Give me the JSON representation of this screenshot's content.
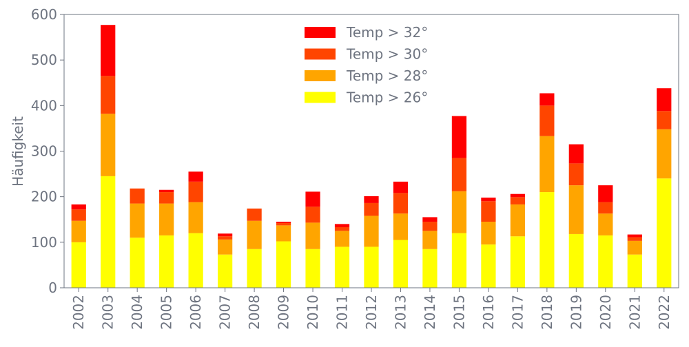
{
  "chart_data": {
    "type": "bar",
    "stacked": true,
    "title": "",
    "xlabel": "",
    "ylabel": "Häufigkeit",
    "ylim": [
      0,
      600
    ],
    "yticks": [
      0,
      100,
      200,
      300,
      400,
      500,
      600
    ],
    "grid": false,
    "legend_position": "top-center",
    "categories": [
      "2002",
      "2003",
      "2004",
      "2005",
      "2006",
      "2007",
      "2008",
      "2009",
      "2010",
      "2011",
      "2012",
      "2013",
      "2014",
      "2015",
      "2016",
      "2017",
      "2018",
      "2019",
      "2020",
      "2021",
      "2022"
    ],
    "series": [
      {
        "name": "Temp > 26°",
        "color": "#ffff00",
        "values": [
          100,
          245,
          110,
          115,
          120,
          73,
          85,
          102,
          85,
          90,
          90,
          105,
          85,
          120,
          95,
          113,
          210,
          118,
          115,
          73,
          240
        ]
      },
      {
        "name": "Temp > 28°",
        "color": "#ffa500",
        "values": [
          47,
          137,
          75,
          70,
          68,
          33,
          62,
          35,
          58,
          35,
          68,
          58,
          40,
          92,
          50,
          70,
          123,
          107,
          48,
          30,
          108
        ]
      },
      {
        "name": "Temp > 30°",
        "color": "#ff4500",
        "values": [
          25,
          83,
          33,
          25,
          45,
          7,
          27,
          5,
          35,
          8,
          28,
          45,
          20,
          73,
          45,
          16,
          67,
          48,
          25,
          8,
          40
        ]
      },
      {
        "name": "Temp > 32°",
        "color": "#ff0000",
        "values": [
          11,
          112,
          0,
          5,
          22,
          6,
          0,
          3,
          33,
          7,
          15,
          25,
          10,
          92,
          8,
          7,
          27,
          42,
          37,
          6,
          50
        ]
      }
    ]
  }
}
